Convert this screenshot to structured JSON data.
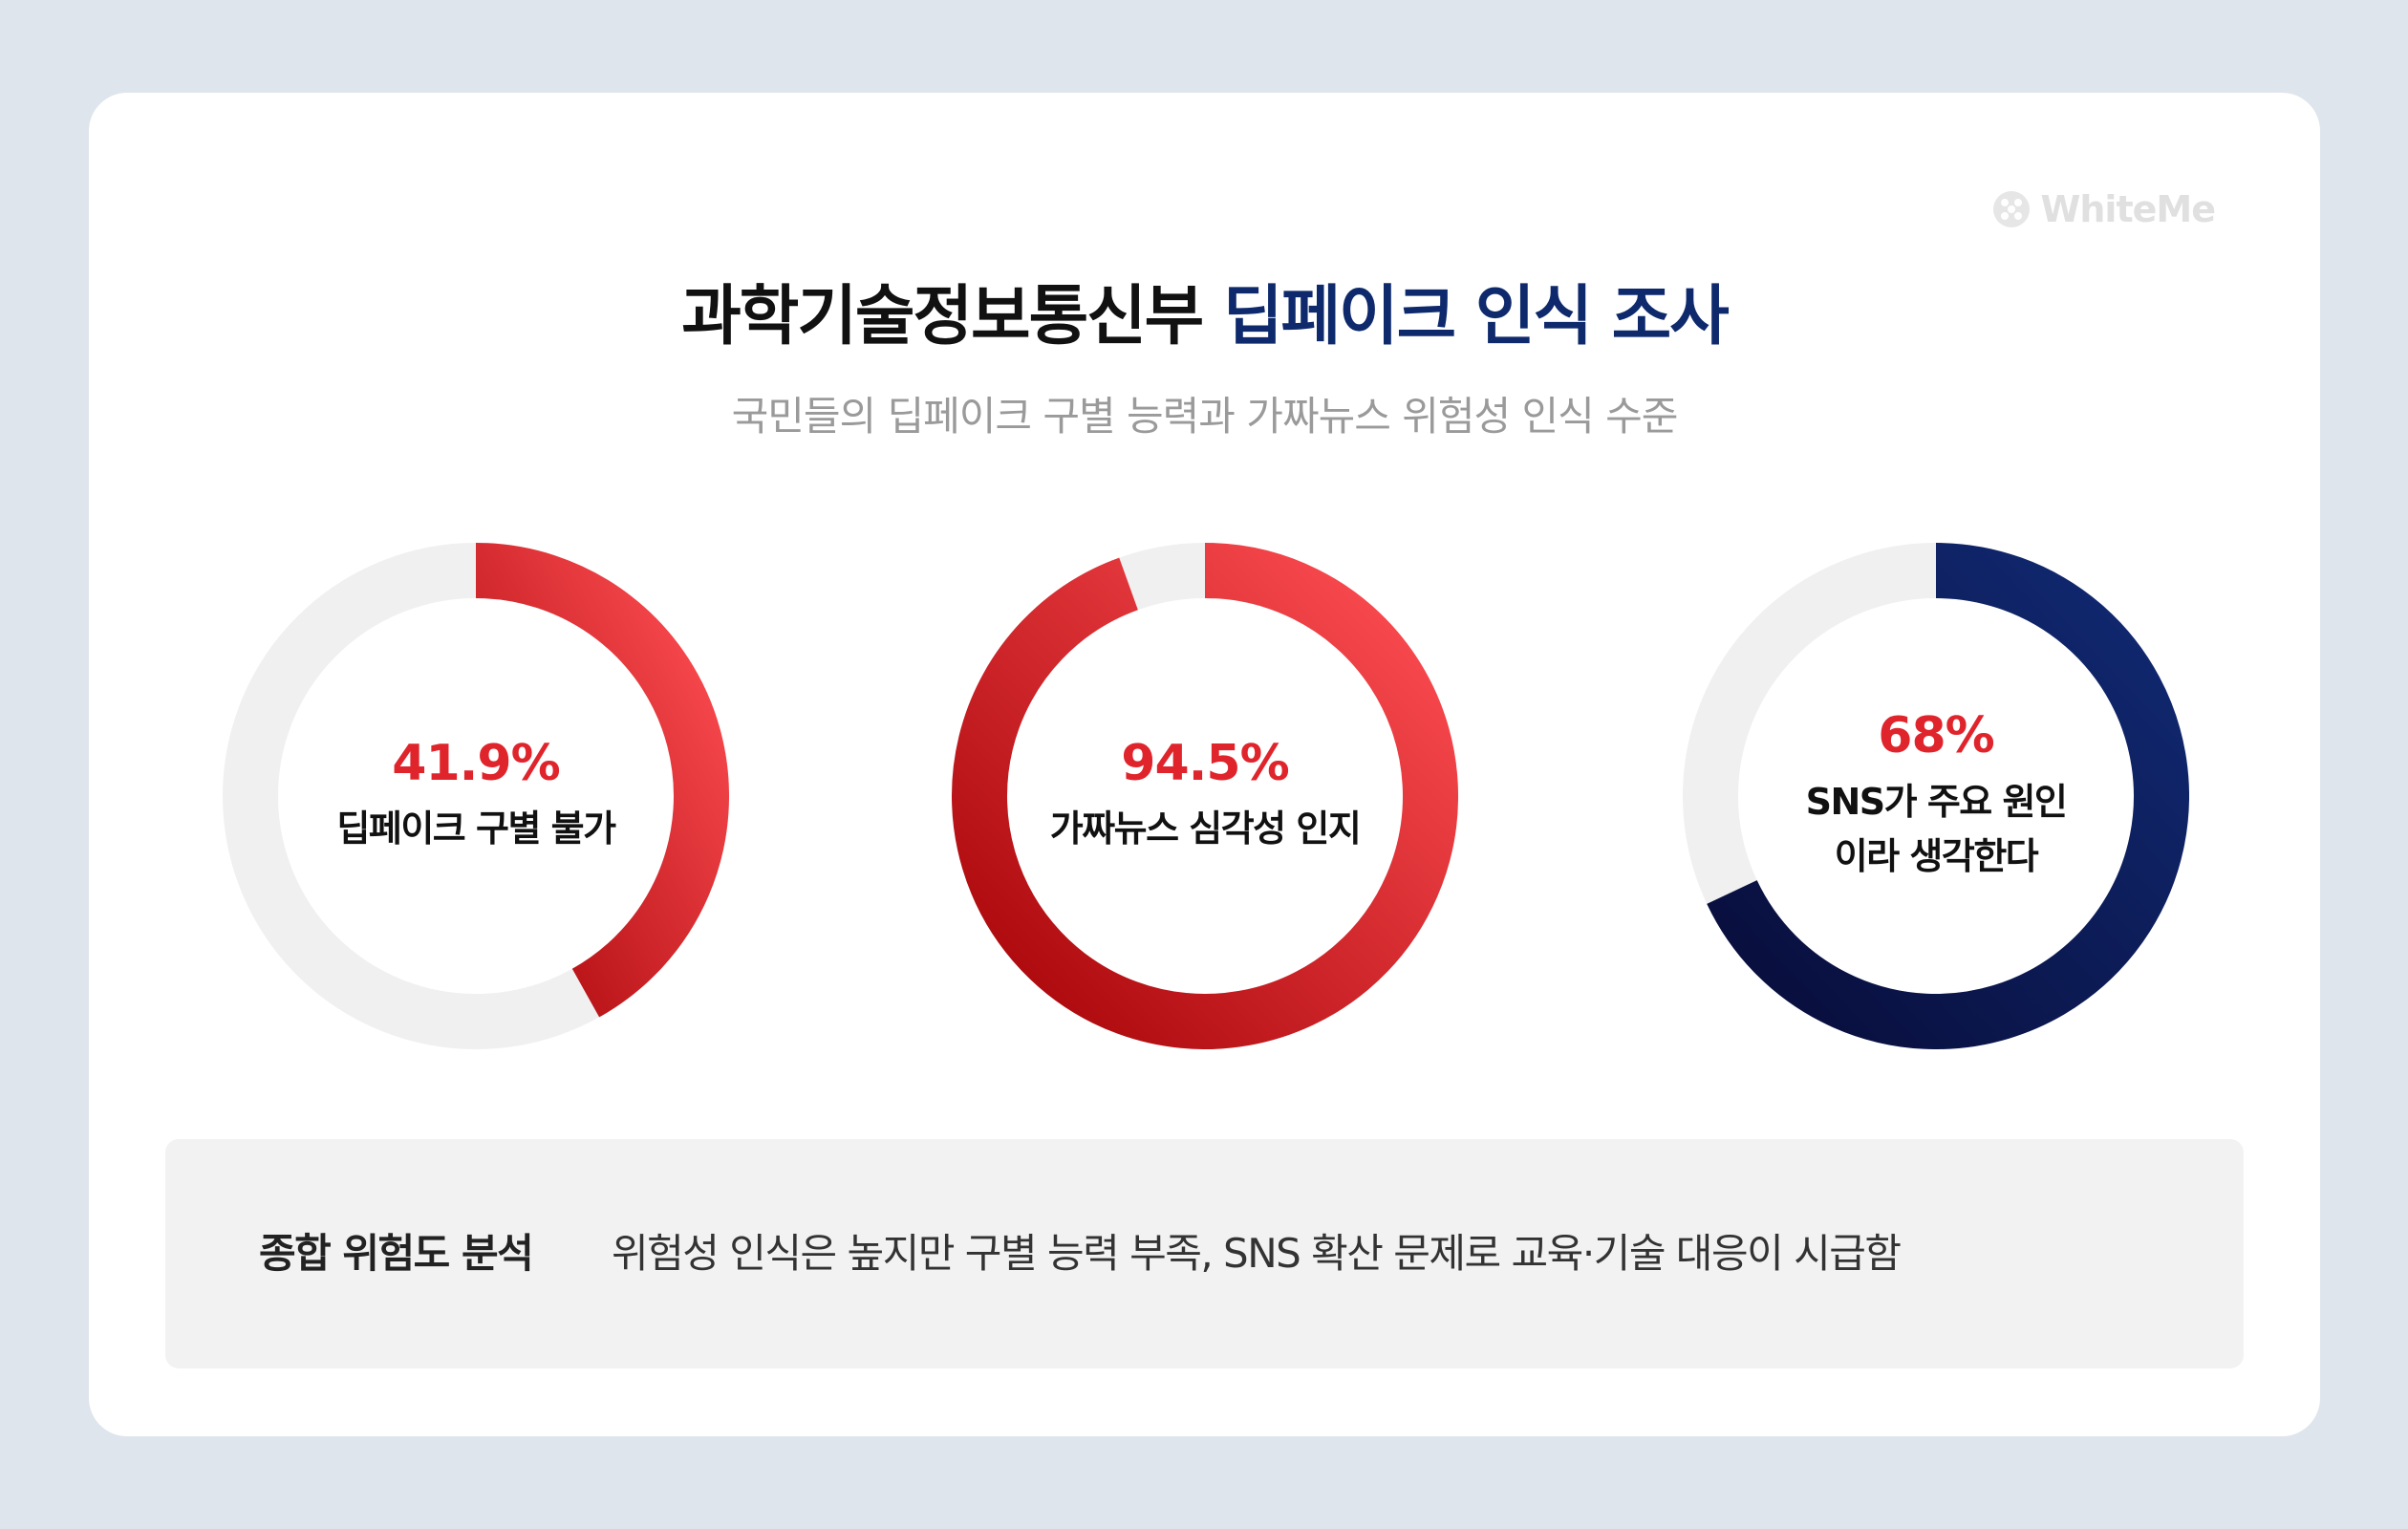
{
  "watermark": {
    "text": "WhiteMe",
    "icon": "logo-dots-icon"
  },
  "header": {
    "title_main": "과학기술정보통신부",
    "title_highlight": "딥페이크 인식 조사",
    "subtitle": "국민들의 딥페이크 구별 능력과 가짜뉴스 위험성 인식 수준"
  },
  "colors": {
    "track": "#f0f0f0",
    "red_light": "#ff4f54",
    "red_dark": "#a60408",
    "navy_light": "#112a73",
    "navy_dark": "#080d3a",
    "percent_text": "#e0242c",
    "title_highlight": "#0e2a6c"
  },
  "chart_data": {
    "type": "pie",
    "donuts": [
      {
        "value": 41.9,
        "percent_label": "41.9%",
        "label_lines": [
          "딥페이크 구별 불가"
        ],
        "color": "red"
      },
      {
        "value": 94.5,
        "percent_label": "94.5%",
        "label_lines": [
          "가짜뉴스 심각성 인지"
        ],
        "color": "red"
      },
      {
        "value": 68,
        "percent_label": "68%",
        "label_lines": [
          "SNS가 주요 원인",
          "이라 생각한다"
        ],
        "color": "navy"
      }
    ]
  },
  "summary": {
    "label": "종합 위험도 분석",
    "text": "위험성 인식은 높지만 구별 능력 부족, SNS 확산 문제로 교육·기술 대응이 시급함"
  }
}
